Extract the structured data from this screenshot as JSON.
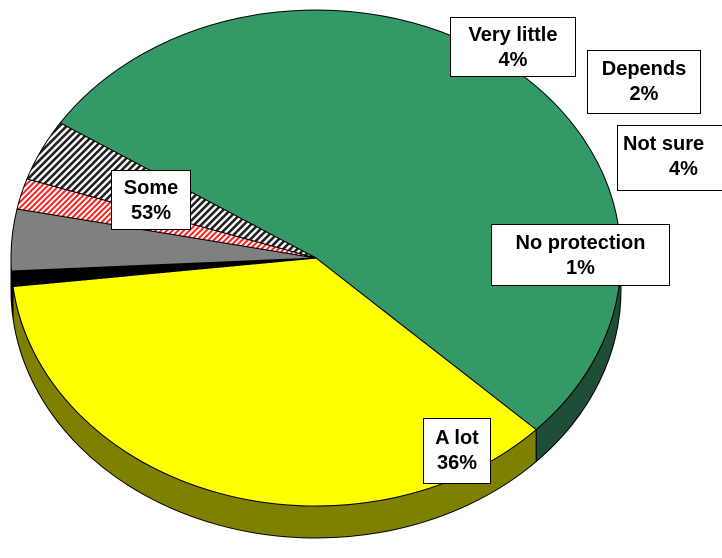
{
  "chart_data": {
    "type": "pie",
    "style": "3d",
    "slices": [
      {
        "label": "Some",
        "value": 53,
        "value_label": "53%",
        "color": "#339966",
        "side_color": "#1e4d38"
      },
      {
        "label": "A lot",
        "value": 36,
        "value_label": "36%",
        "color": "#ffff00",
        "side_color": "#808000"
      },
      {
        "label": "No protection",
        "value": 1,
        "value_label": "1%",
        "color": "#000000",
        "side_color": "#000000"
      },
      {
        "label": "Not sure",
        "value": 4,
        "value_label": "4%",
        "color": "#808080",
        "side_color": "#4d4d4d"
      },
      {
        "label": "Depends",
        "value": 2,
        "value_label": "2%",
        "color": "#ff8080",
        "side_color": "#b35959",
        "pattern": "hatch"
      },
      {
        "label": "Very little",
        "value": 4,
        "value_label": "4%",
        "color": "#404040",
        "side_color": "#262626",
        "pattern": "hatch"
      }
    ]
  }
}
